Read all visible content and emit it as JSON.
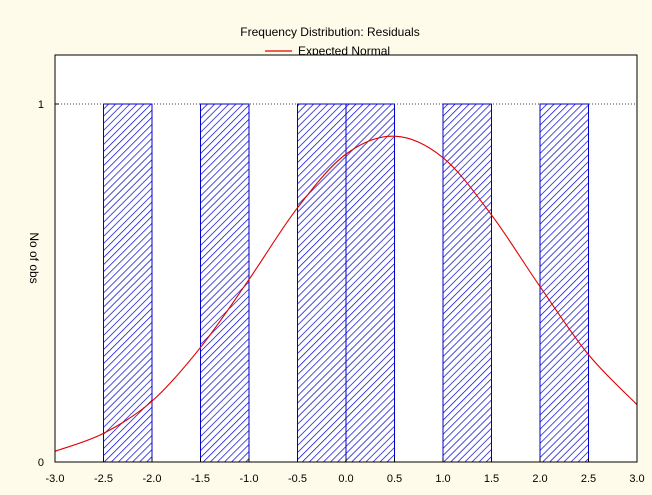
{
  "chart_data": {
    "type": "bar",
    "title": "Frequency Distribution: Residuals",
    "legend": [
      {
        "label": "Expected Normal",
        "color": "#e00000",
        "style": "line"
      }
    ],
    "legend_placement": "top-center",
    "xlabel": "",
    "ylabel": "No of obs",
    "xlim": [
      -3.0,
      3.0
    ],
    "ylim": [
      0,
      1
    ],
    "x_ticks": [
      "-3.0",
      "-2.5",
      "-2.0",
      "-1.5",
      "-1.0",
      "-0.5",
      "0.0",
      "0.5",
      "1.0",
      "1.5",
      "2.0",
      "2.5",
      "3.0"
    ],
    "y_ticks": [
      "0",
      "1"
    ],
    "grid": "dotted line at y = 1",
    "bins": [
      {
        "from": -2.5,
        "to": -2.0,
        "count": 1
      },
      {
        "from": -1.5,
        "to": -1.0,
        "count": 1
      },
      {
        "from": -0.5,
        "to": 0.0,
        "count": 1
      },
      {
        "from": 0.0,
        "to": 0.5,
        "count": 1
      },
      {
        "from": 1.0,
        "to": 1.5,
        "count": 1
      },
      {
        "from": 2.0,
        "to": 2.5,
        "count": 1
      }
    ],
    "bar_fill": "hatched",
    "bar_color": "#0000cc",
    "expected_normal": {
      "name": "Expected Normal",
      "mean": 0.42,
      "peak": 0.91,
      "x": [
        -3.0,
        -2.5,
        -2.0,
        -1.5,
        -1.0,
        -0.5,
        0.0,
        0.5,
        1.0,
        1.5,
        2.0,
        2.5,
        3.0
      ],
      "y": [
        0.03,
        0.08,
        0.17,
        0.32,
        0.51,
        0.71,
        0.86,
        0.91,
        0.85,
        0.69,
        0.49,
        0.3,
        0.16
      ]
    },
    "curve_color": "#e00000"
  }
}
